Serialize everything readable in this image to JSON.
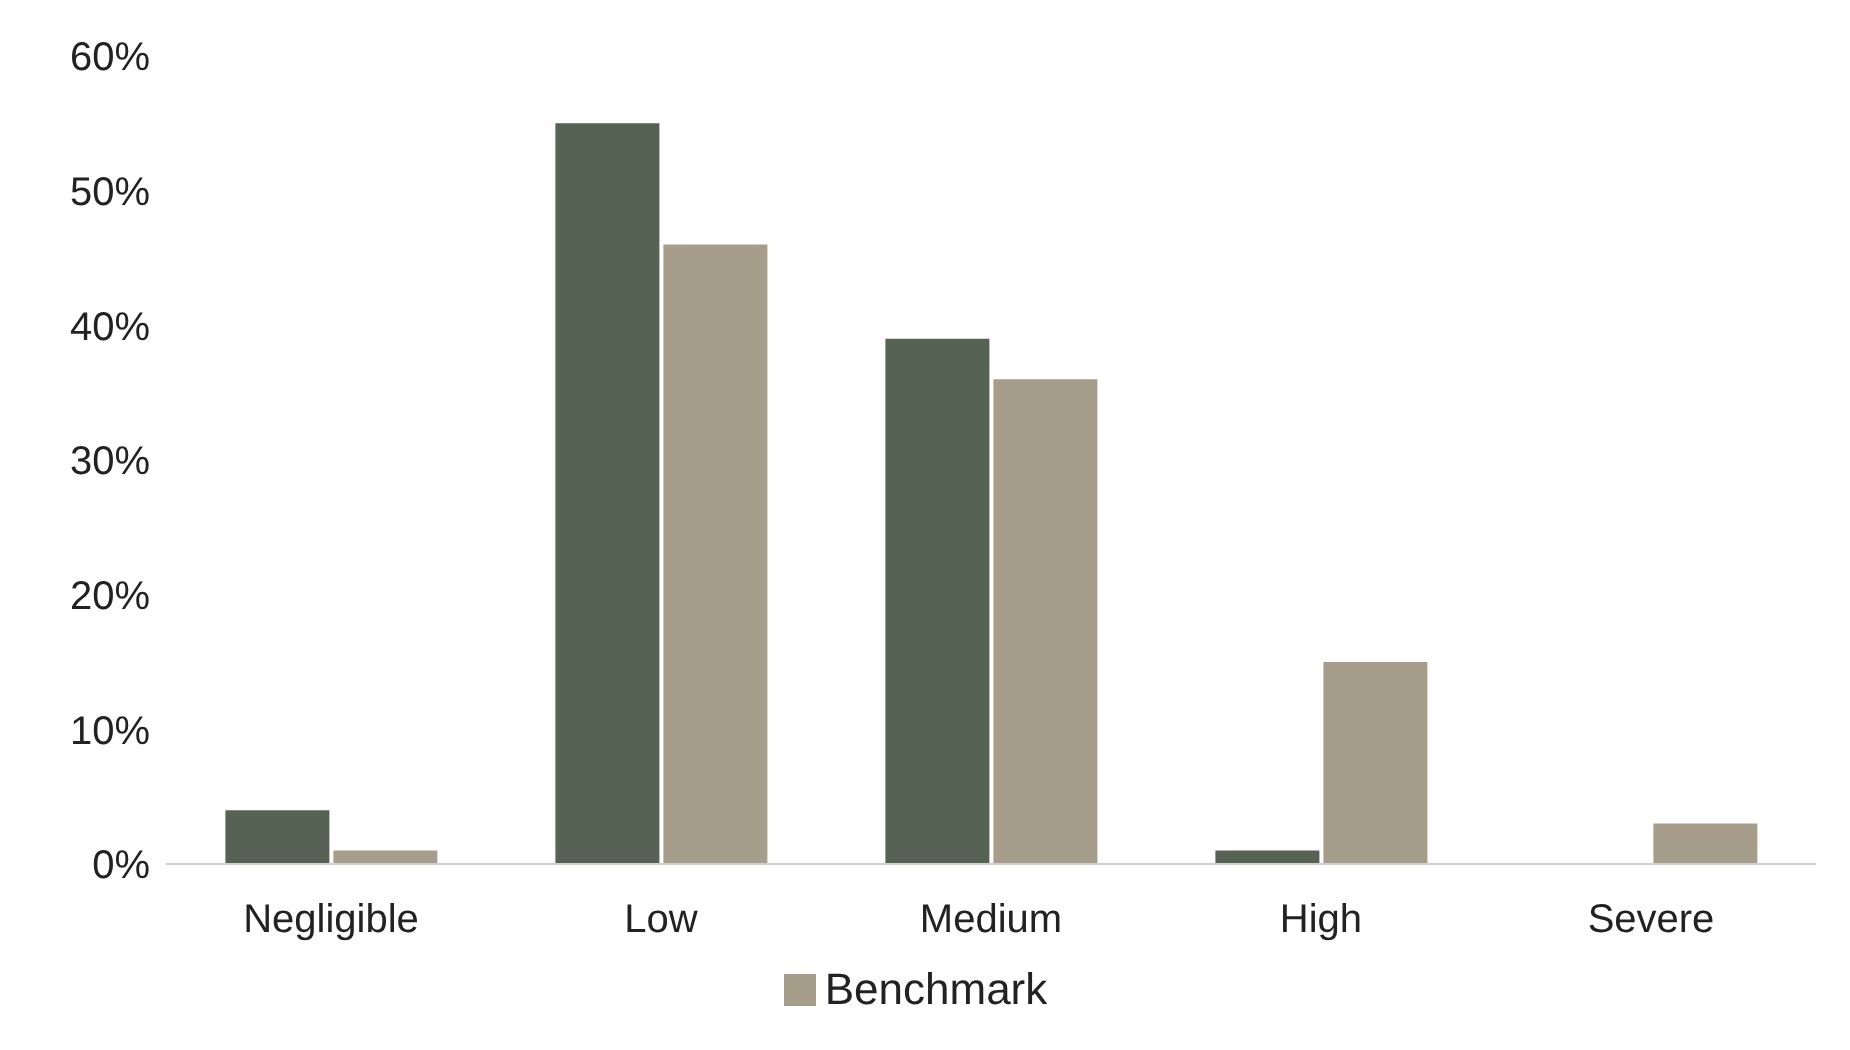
{
  "chart_data": {
    "type": "bar",
    "categories": [
      "Negligible",
      "Low",
      "Medium",
      "High",
      "Severe"
    ],
    "series": [
      {
        "color": "#566253",
        "values": [
          4,
          55,
          39,
          1,
          0
        ]
      },
      {
        "name": "Benchmark",
        "color": "#a69e8a",
        "values": [
          1,
          46,
          36,
          15,
          3
        ]
      }
    ],
    "ylim": [
      0,
      60
    ],
    "yticks": [
      {
        "value": 0,
        "label": "0%"
      },
      {
        "value": 10,
        "label": "10%"
      },
      {
        "value": 20,
        "label": "20%"
      },
      {
        "value": 30,
        "label": "30%"
      },
      {
        "value": 40,
        "label": "40%"
      },
      {
        "value": 50,
        "label": "50%"
      },
      {
        "value": 60,
        "label": "60%"
      }
    ],
    "grid": false,
    "legend": "bottom"
  }
}
